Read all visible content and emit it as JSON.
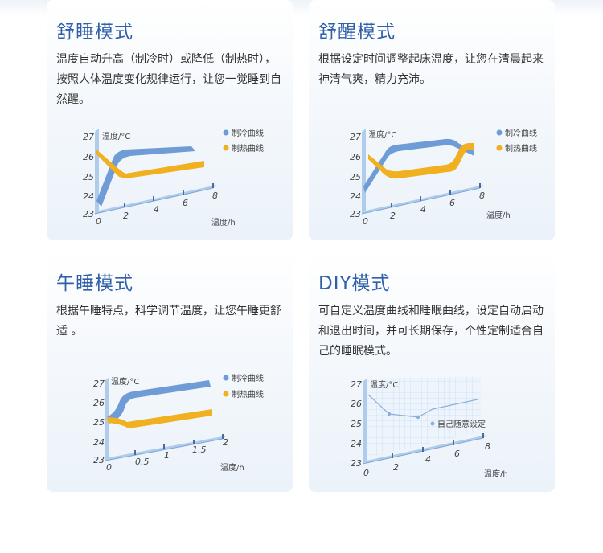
{
  "cards": [
    {
      "title": "舒睡模式",
      "desc": "温度自动升高（制冷时）或降低（制热时），按照人体温度变化规律运行，让您一觉睡到自然醒。",
      "chart": {
        "y_label": "温度/°C",
        "x_label": "温度/h",
        "y_ticks": [
          "27",
          "26",
          "25",
          "24",
          "23"
        ],
        "x_ticks": [
          "0",
          "2",
          "4",
          "6",
          "8"
        ],
        "legend": [
          "制冷曲线",
          "制热曲线"
        ]
      }
    },
    {
      "title": "舒醒模式",
      "desc": "根据设定时间调整起床温度，让您在清晨起来神清气爽，精力充沛。",
      "chart": {
        "y_label": "温度/°C",
        "x_label": "温度/h",
        "y_ticks": [
          "27",
          "26",
          "25",
          "24",
          "23"
        ],
        "x_ticks": [
          "0",
          "2",
          "4",
          "6",
          "8"
        ],
        "legend": [
          "制冷曲线",
          "制热曲线"
        ]
      }
    },
    {
      "title": "午睡模式",
      "desc": "根据午睡特点，科学调节温度，让您午睡更舒适 。",
      "chart": {
        "y_label": "温度/°C",
        "x_label": "温度/h",
        "y_ticks": [
          "27",
          "26",
          "25",
          "24",
          "23"
        ],
        "x_ticks": [
          "0",
          "0.5",
          "1",
          "1.5",
          "2"
        ],
        "legend": [
          "制冷曲线",
          "制热曲线"
        ]
      }
    },
    {
      "title": "DIY模式",
      "desc": "可自定义温度曲线和睡眠曲线，设定自动启动和退出时间，并可长期保存，个性定制适合自己的睡眠模式。",
      "chart": {
        "y_label": "温度/°C",
        "x_label": "温度/h",
        "y_ticks": [
          "27",
          "26",
          "25",
          "24",
          "23"
        ],
        "x_ticks": [
          "0",
          "2",
          "4",
          "6",
          "8"
        ],
        "legend": [
          "自己随意设定"
        ]
      }
    }
  ],
  "colors": {
    "title": "#2f5fa9",
    "cool": "#6f9bd6",
    "heat": "#f0b020",
    "axis": "#a8c8ea"
  }
}
